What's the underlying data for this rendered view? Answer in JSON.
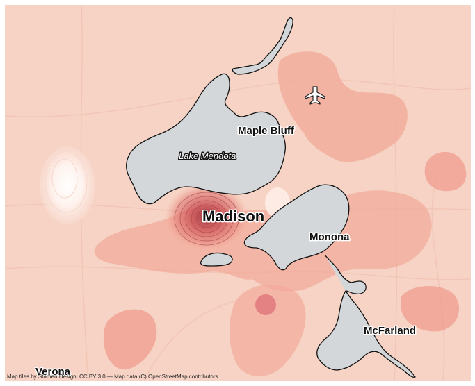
{
  "map": {
    "labels": {
      "madison": "Madison",
      "maple_bluff": "Maple Bluff",
      "lake_mendota": "Lake Mendota",
      "monona": "Monona",
      "mcfarland": "McFarland",
      "verona": "Verona"
    },
    "attribution": "Map tiles by Stamen Design, CC BY 3.0 — Map data (C) OpenStreetMap contributors",
    "icons": [
      "airport-icon"
    ],
    "colors": {
      "background": "#f6d3c4",
      "heat_light": "#f7b4a2",
      "heat_mid": "#f08c7a",
      "heat_dark": "#c94a4f",
      "cold": "#ffffff",
      "water": "#d3d7da"
    }
  }
}
